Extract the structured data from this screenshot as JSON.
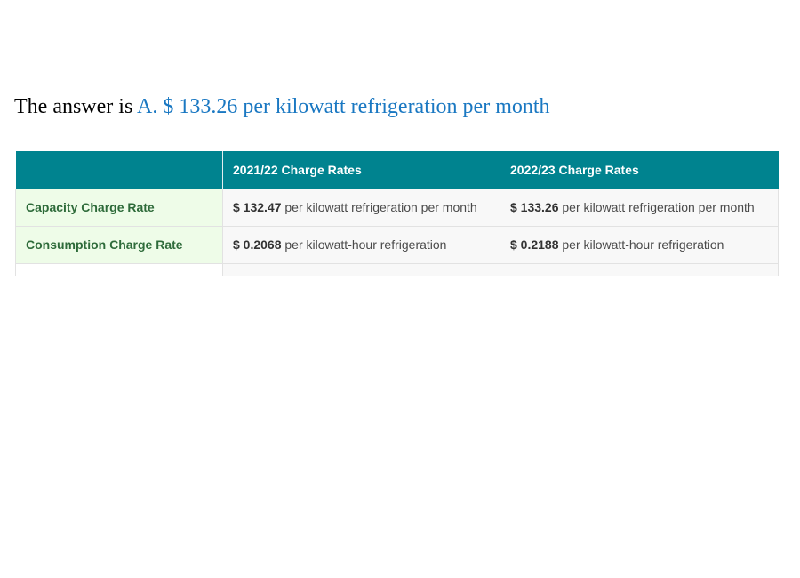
{
  "answer": {
    "prefix": "The answer is",
    "value": "A. $ 133.26 per kilowatt refrigeration per month"
  },
  "table": {
    "headers": [
      "",
      "2021/22 Charge Rates",
      "2022/23 Charge Rates"
    ],
    "rows": [
      {
        "label": "Capacity Charge Rate",
        "cells": [
          {
            "amount": "$ 132.47",
            "unit": "per kilowatt refrigeration per month"
          },
          {
            "amount": "$ 133.26",
            "unit": "per kilowatt refrigeration per month"
          }
        ]
      },
      {
        "label": "Consumption Charge Rate",
        "cells": [
          {
            "amount": "$ 0.2068",
            "unit": "per kilowatt-hour refrigeration"
          },
          {
            "amount": "$ 0.2188",
            "unit": "per kilowatt-hour refrigeration"
          }
        ]
      }
    ]
  },
  "colors": {
    "header_bg": "#00838f",
    "answer_accent": "#1a78c2",
    "label_bg": "#eefce8",
    "label_text": "#2e6b3a"
  }
}
